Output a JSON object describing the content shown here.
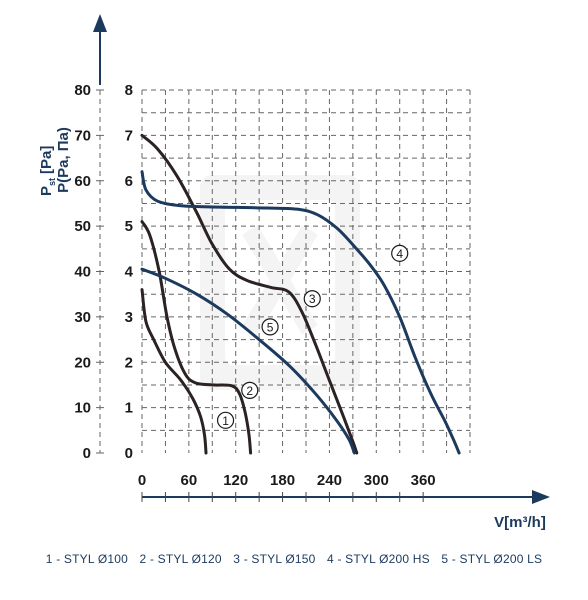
{
  "chart_data": {
    "type": "line",
    "xlabel": "V[m³/h]",
    "ylabel_left": "P",
    "ylabel_left_sub": "st",
    "ylabel_left_unit": "[Pa]",
    "ylabel_right": "P(Pa, Па)",
    "x_ticks": [
      "0",
      "60",
      "120",
      "180",
      "240",
      "300",
      "360"
    ],
    "x_tick_values": [
      0,
      60,
      120,
      180,
      240,
      300,
      360
    ],
    "y_ticks_outer": [
      "0",
      "10",
      "20",
      "30",
      "40",
      "50",
      "60",
      "70",
      "80"
    ],
    "y_ticks_inner": [
      "0",
      "1",
      "2",
      "3",
      "4",
      "5",
      "6",
      "7",
      "8"
    ],
    "xlim": [
      0,
      420
    ],
    "ylim_inner": [
      0,
      8
    ],
    "ylim_outer": [
      0,
      80
    ],
    "grid": true,
    "colors": {
      "dark": "#2b2222",
      "blue": "#1c3a5e",
      "grid": "#666666"
    },
    "series": [
      {
        "marker": "1",
        "color": "dark",
        "marker_at": [
          107,
          0.72
        ],
        "points": [
          [
            0,
            3.6
          ],
          [
            5,
            2.9
          ],
          [
            15,
            2.5
          ],
          [
            30,
            2.0
          ],
          [
            50,
            1.6
          ],
          [
            65,
            1.2
          ],
          [
            75,
            0.8
          ],
          [
            80,
            0.4
          ],
          [
            82,
            0
          ]
        ]
      },
      {
        "marker": "2",
        "color": "dark",
        "marker_at": [
          138,
          1.38
        ],
        "points": [
          [
            0,
            5.1
          ],
          [
            10,
            4.8
          ],
          [
            22,
            4.0
          ],
          [
            32,
            3.0
          ],
          [
            42,
            2.3
          ],
          [
            55,
            1.75
          ],
          [
            68,
            1.55
          ],
          [
            90,
            1.5
          ],
          [
            115,
            1.48
          ],
          [
            125,
            1.3
          ],
          [
            132,
            0.9
          ],
          [
            137,
            0.4
          ],
          [
            139,
            0
          ]
        ]
      },
      {
        "marker": "3",
        "color": "dark",
        "marker_at": [
          218,
          3.4
        ],
        "points": [
          [
            0,
            7.0
          ],
          [
            20,
            6.7
          ],
          [
            45,
            6.1
          ],
          [
            70,
            5.3
          ],
          [
            90,
            4.6
          ],
          [
            112,
            4.05
          ],
          [
            135,
            3.8
          ],
          [
            165,
            3.65
          ],
          [
            188,
            3.55
          ],
          [
            205,
            3.1
          ],
          [
            222,
            2.4
          ],
          [
            240,
            1.6
          ],
          [
            258,
            0.8
          ],
          [
            270,
            0.25
          ],
          [
            275,
            0
          ]
        ]
      },
      {
        "marker": "4",
        "color": "blue",
        "marker_at": [
          330,
          4.4
        ],
        "points": [
          [
            0,
            6.2
          ],
          [
            5,
            5.8
          ],
          [
            20,
            5.55
          ],
          [
            50,
            5.45
          ],
          [
            100,
            5.42
          ],
          [
            160,
            5.4
          ],
          [
            200,
            5.37
          ],
          [
            225,
            5.25
          ],
          [
            250,
            4.95
          ],
          [
            272,
            4.55
          ],
          [
            292,
            4.15
          ],
          [
            310,
            3.7
          ],
          [
            330,
            3.0
          ],
          [
            350,
            2.1
          ],
          [
            370,
            1.3
          ],
          [
            388,
            0.7
          ],
          [
            400,
            0.25
          ],
          [
            406,
            0
          ]
        ]
      },
      {
        "marker": "5",
        "color": "blue",
        "marker_at": [
          164,
          2.78
        ],
        "points": [
          [
            0,
            4.05
          ],
          [
            30,
            3.85
          ],
          [
            70,
            3.5
          ],
          [
            110,
            3.05
          ],
          [
            150,
            2.5
          ],
          [
            190,
            1.9
          ],
          [
            225,
            1.25
          ],
          [
            250,
            0.7
          ],
          [
            265,
            0.3
          ],
          [
            272,
            0
          ]
        ]
      }
    ]
  },
  "legend": {
    "items": [
      "1 - STYL Ø100",
      "2 - STYL Ø120",
      "3 - STYL Ø150",
      "4 - STYL Ø200 HS",
      "5 - STYL Ø200 LS"
    ]
  }
}
